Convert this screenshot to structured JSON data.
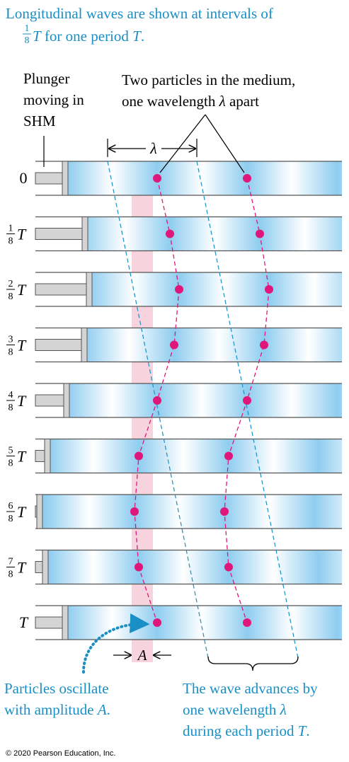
{
  "caption": {
    "line1": [
      "Longitudinal waves are shown at intervals of"
    ],
    "fraction": {
      "numerator": "1",
      "denominator": "8"
    },
    "line2": [
      "T",
      " for one period ",
      "T",
      "."
    ]
  },
  "plunger_label": [
    [
      "Plunger"
    ],
    [
      "moving in"
    ],
    [
      "SHM"
    ]
  ],
  "particles_label": [
    [
      "Two particles in the medium,"
    ],
    [
      "one wavelength ",
      "λ",
      " apart"
    ]
  ],
  "wavelength_symbol": "λ",
  "rows": [
    {
      "label": "0"
    },
    {
      "numerator": "1",
      "denominator": "8",
      "symbol": "T"
    },
    {
      "numerator": "2",
      "denominator": "8",
      "symbol": "T"
    },
    {
      "numerator": "3",
      "denominator": "8",
      "symbol": "T"
    },
    {
      "numerator": "4",
      "denominator": "8",
      "symbol": "T"
    },
    {
      "numerator": "5",
      "denominator": "8",
      "symbol": "T"
    },
    {
      "numerator": "6",
      "denominator": "8",
      "symbol": "T"
    },
    {
      "numerator": "7",
      "denominator": "8",
      "symbol": "T"
    },
    {
      "label": "T"
    }
  ],
  "amplitude_symbol": "A",
  "amplitude_note": [
    [
      "Particles oscillate"
    ],
    [
      "with amplitude ",
      "A",
      "."
    ]
  ],
  "advance_note": [
    [
      "The wave advances by"
    ],
    [
      "one wavelength ",
      "λ"
    ],
    [
      "during each period ",
      "T",
      "."
    ]
  ],
  "copyright": "© 2020 Pearson Education, Inc."
}
